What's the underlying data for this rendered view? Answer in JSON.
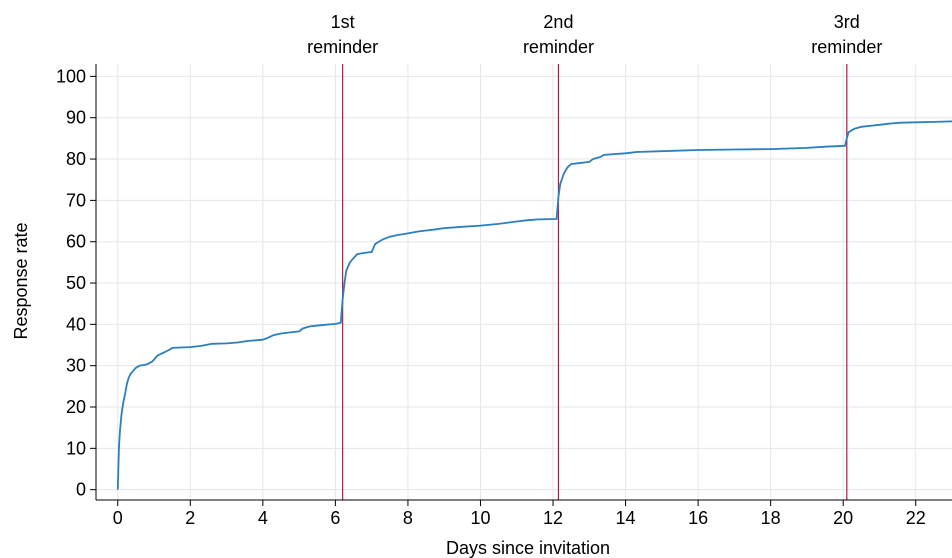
{
  "chart_data": {
    "type": "line",
    "title": "",
    "xlabel": "Days since invitation",
    "ylabel": "Response rate",
    "xlim": [
      -0.6,
      23
    ],
    "ylim": [
      -2.5,
      103
    ],
    "xticks": [
      0,
      2,
      4,
      6,
      8,
      10,
      12,
      14,
      16,
      18,
      20,
      22
    ],
    "yticks": [
      0,
      10,
      20,
      30,
      40,
      50,
      60,
      70,
      80,
      90,
      100
    ],
    "grid": true,
    "colors": {
      "line": "#2a7fbf",
      "reference": "#b0194d",
      "grid": "#e6e6e6",
      "axis": "#000000"
    },
    "reference_lines": [
      {
        "x": 6.2,
        "label_line1": "1st",
        "label_line2": "reminder"
      },
      {
        "x": 12.15,
        "label_line1": "2nd",
        "label_line2": "reminder"
      },
      {
        "x": 20.1,
        "label_line1": "3rd",
        "label_line2": "reminder"
      }
    ],
    "series": [
      {
        "x": [
          0,
          0.03,
          0.06,
          0.1,
          0.15,
          0.2,
          0.25,
          0.3,
          0.35,
          0.4,
          0.5,
          0.6,
          0.8,
          0.95,
          1.1,
          1.3,
          1.45,
          1.5,
          2.0,
          2.3,
          2.6,
          3.0,
          3.3,
          3.6,
          4.0,
          4.1,
          4.3,
          4.5,
          4.7,
          5.0,
          5.1,
          5.3,
          5.6,
          6.0,
          6.15,
          6.2,
          6.25,
          6.3,
          6.4,
          6.5,
          6.6,
          6.8,
          7.0,
          7.1,
          7.3,
          7.5,
          7.7,
          8.0,
          8.3,
          8.7,
          9.0,
          9.5,
          10.0,
          10.5,
          11.0,
          11.3,
          11.6,
          12.1,
          12.15,
          12.2,
          12.3,
          12.4,
          12.5,
          12.7,
          13.0,
          13.1,
          13.3,
          13.4,
          14.0,
          14.3,
          15.0,
          16.0,
          17.0,
          18.0,
          19.0,
          19.5,
          20.05,
          20.1,
          20.15,
          20.3,
          20.5,
          20.8,
          21.0,
          21.3,
          21.6,
          22.0,
          22.5,
          23.0
        ],
        "values": [
          0,
          10,
          14,
          18,
          21,
          23,
          25.5,
          27,
          28,
          28.5,
          29.5,
          30,
          30.3,
          31,
          32.5,
          33.3,
          34.0,
          34.3,
          34.5,
          34.8,
          35.3,
          35.4,
          35.6,
          36.0,
          36.3,
          36.6,
          37.4,
          37.8,
          38.0,
          38.3,
          39.0,
          39.5,
          39.8,
          40.1,
          40.4,
          46,
          50,
          53,
          55,
          56,
          57,
          57.3,
          57.5,
          59.5,
          60.5,
          61.2,
          61.6,
          62.0,
          62.5,
          62.9,
          63.3,
          63.6,
          63.9,
          64.3,
          64.9,
          65.2,
          65.4,
          65.5,
          71,
          74,
          76.5,
          78,
          78.8,
          79.0,
          79.3,
          80.0,
          80.5,
          81.0,
          81.4,
          81.7,
          81.9,
          82.2,
          82.3,
          82.4,
          82.7,
          83.0,
          83.2,
          85.0,
          86.5,
          87.3,
          87.8,
          88.1,
          88.3,
          88.6,
          88.8,
          88.9,
          89.0,
          89.1
        ]
      }
    ]
  }
}
